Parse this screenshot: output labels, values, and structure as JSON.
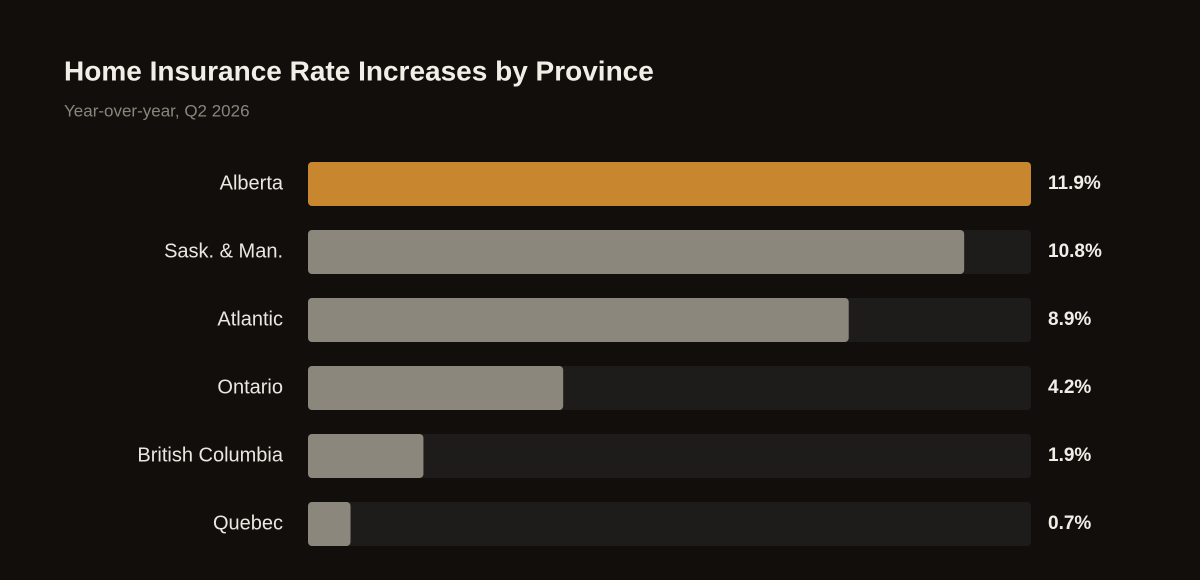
{
  "chart_data": {
    "type": "bar",
    "orientation": "horizontal",
    "title": "Home Insurance Rate Increases by Province",
    "subtitle": "Year-over-year, Q2 2026",
    "categories": [
      "Alberta",
      "Sask. & Man.",
      "Atlantic",
      "Ontario",
      "British Columbia",
      "Quebec"
    ],
    "values": [
      11.9,
      10.8,
      8.9,
      4.2,
      1.9,
      0.7
    ],
    "value_labels": [
      "11.9%",
      "10.8%",
      "8.9%",
      "4.2%",
      "1.9%",
      "0.7%"
    ],
    "colors": [
      "#c8862e",
      "#8c877d",
      "#8c877d",
      "#8c877d",
      "#8c877d",
      "#8c877d"
    ],
    "track_color": "#1e1c1a",
    "xlim": [
      0,
      11.9
    ]
  }
}
